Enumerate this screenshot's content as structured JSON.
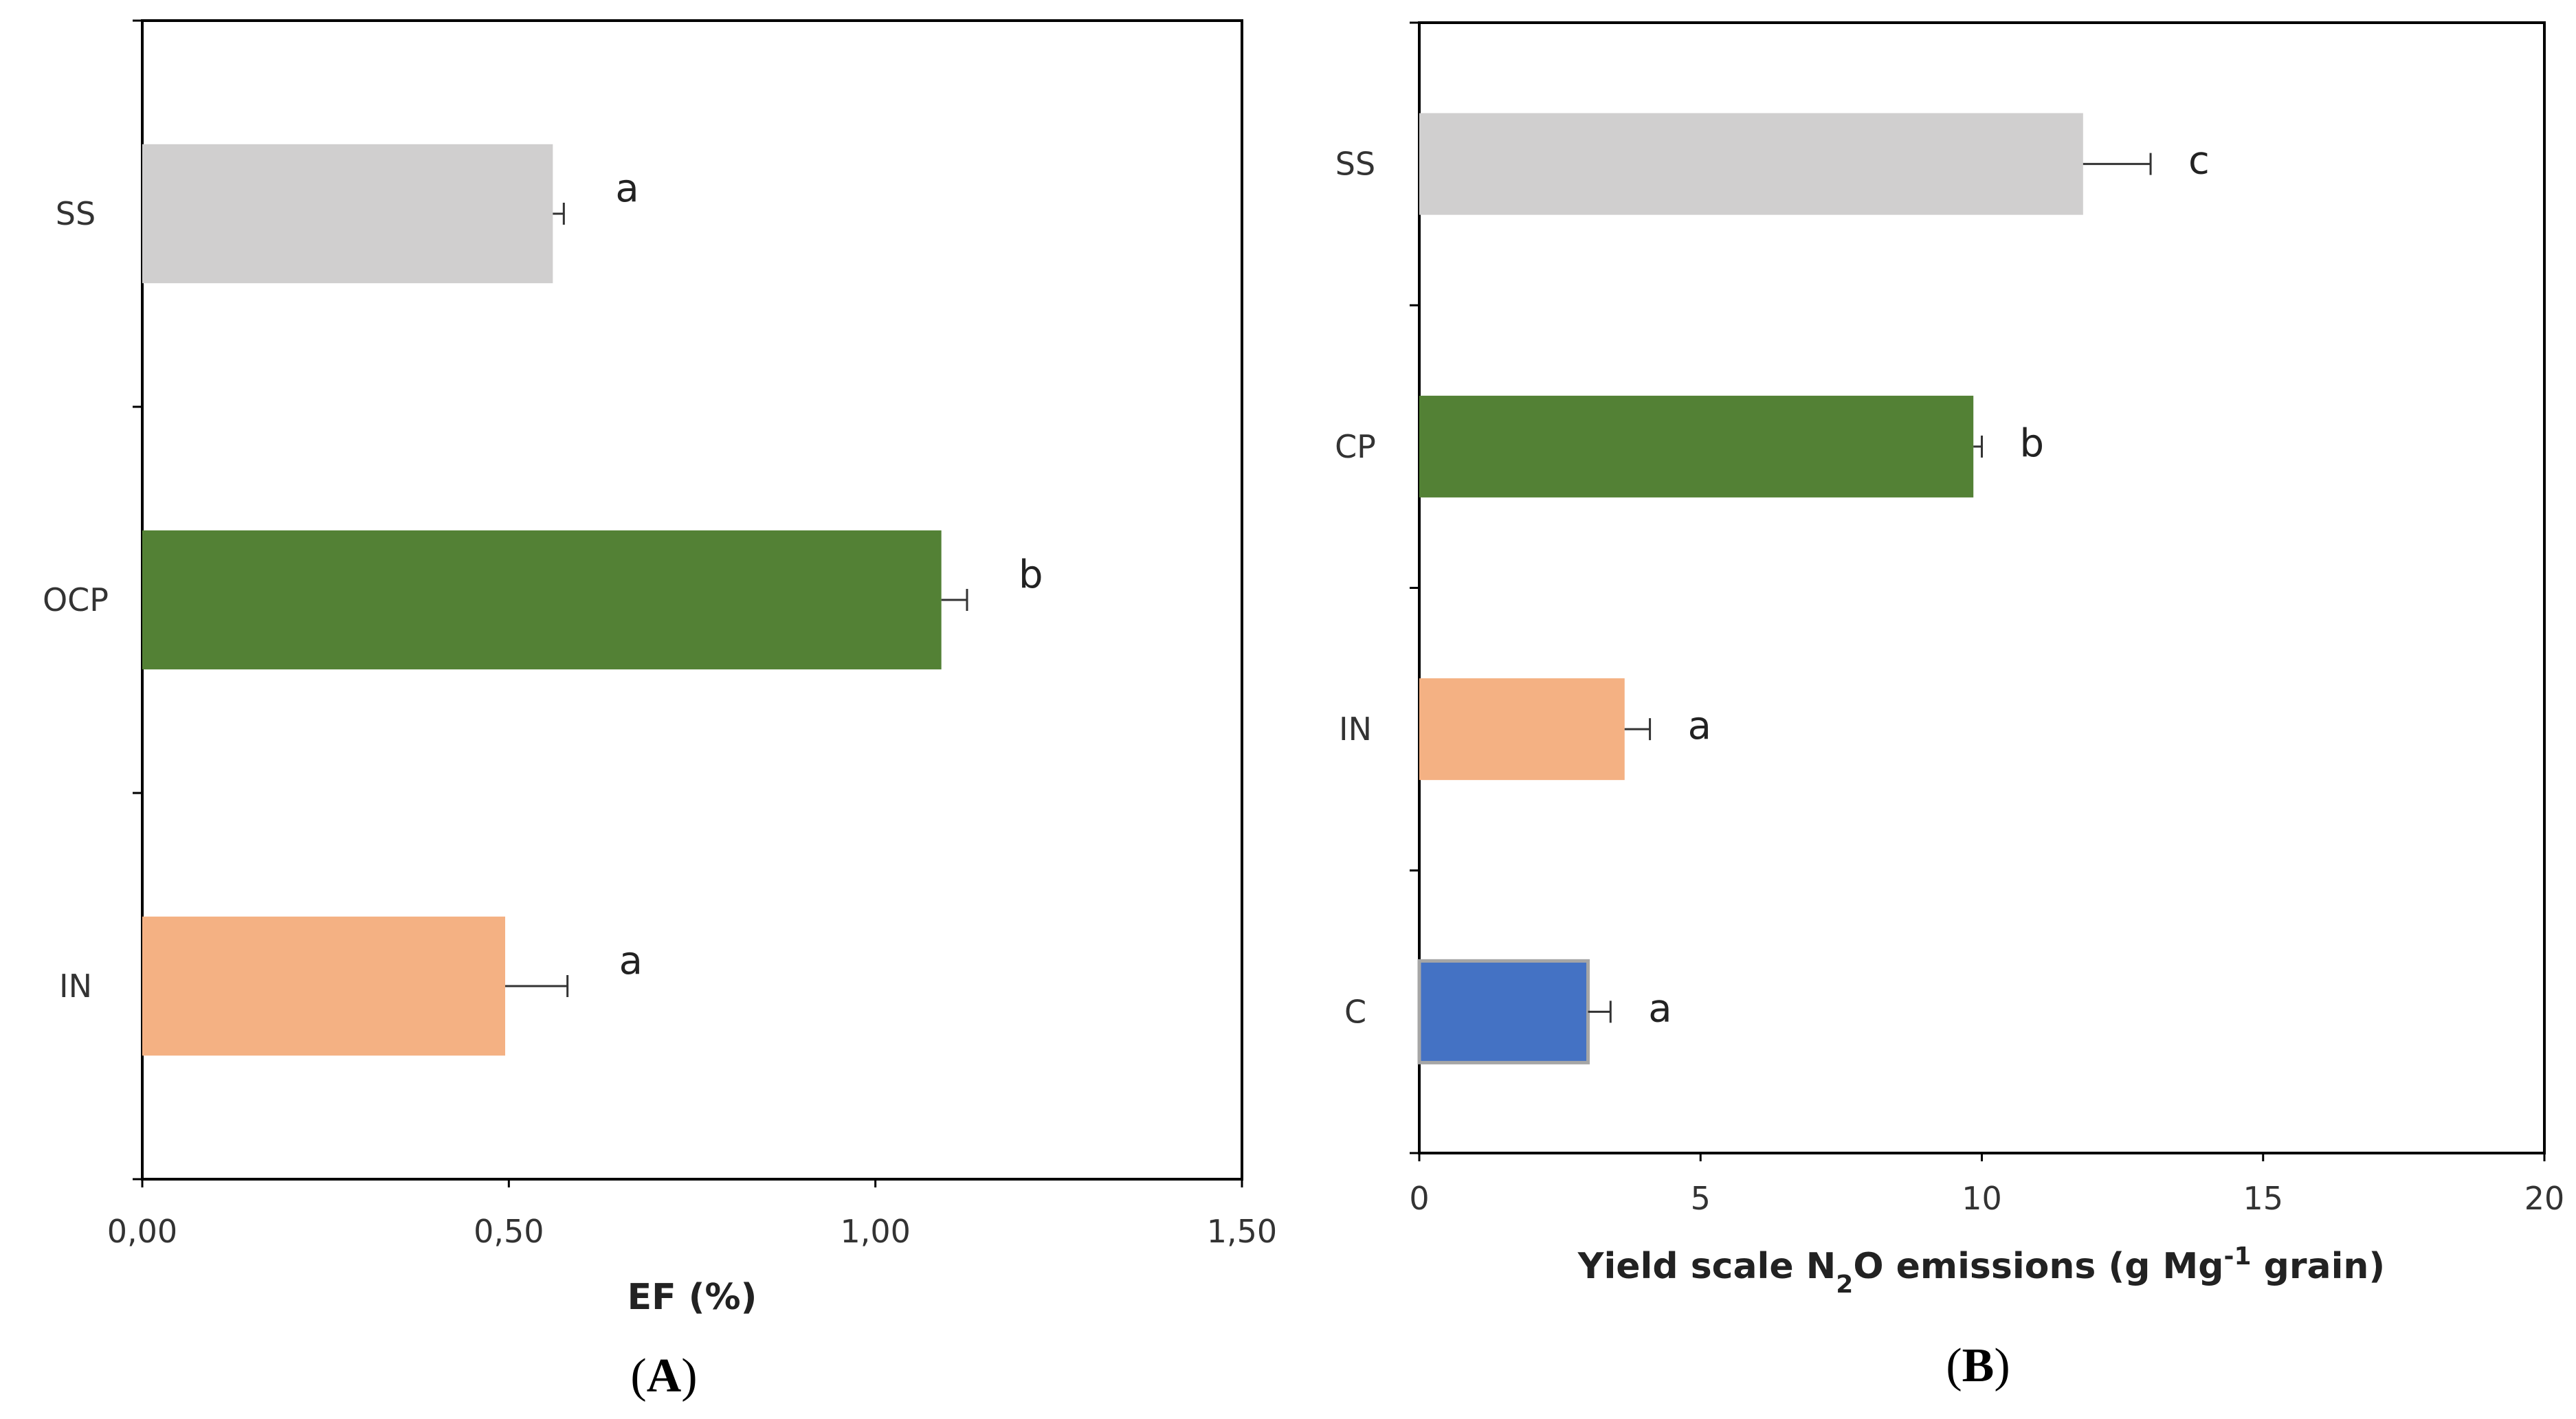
{
  "chart_data": [
    {
      "type": "bar",
      "orientation": "horizontal",
      "panel_label": "A",
      "categories": [
        "SS",
        "OCP",
        "IN"
      ],
      "values": [
        0.56,
        1.09,
        0.495
      ],
      "errors": [
        0.015,
        0.035,
        0.085
      ],
      "significance_letters": [
        "a",
        "b",
        "a"
      ],
      "colors": [
        "#d0cfcf",
        "#538135",
        "#f4b183"
      ],
      "xlabel": "EF (%)",
      "xlim": [
        0,
        1.5
      ],
      "xticks": [
        0,
        0.5,
        1.0,
        1.5
      ],
      "xtick_labels": [
        "0,00",
        "0,50",
        "1,00",
        "1,50"
      ]
    },
    {
      "type": "bar",
      "orientation": "horizontal",
      "panel_label": "B",
      "categories": [
        "SS",
        "CP",
        "IN",
        "C"
      ],
      "values": [
        11.8,
        9.85,
        3.65,
        3.0
      ],
      "errors": [
        1.2,
        0.15,
        0.45,
        0.4
      ],
      "significance_letters": [
        "c",
        "b",
        "a",
        "a"
      ],
      "colors": [
        "#d0cfcf",
        "#538135",
        "#f4b183",
        "#4472c4"
      ],
      "xlabel": "Yield scale N₂O emissions (g Mg⁻¹ grain)",
      "xlabel_parts": {
        "pre": "Yield scale N",
        "sub": "2",
        "mid": "O emissions (g Mg",
        "sup": "-1",
        "post": " grain)"
      },
      "xlim": [
        0,
        20
      ],
      "xticks": [
        0,
        5,
        10,
        15,
        20
      ],
      "xtick_labels": [
        "0",
        "5",
        "10",
        "15",
        "20"
      ]
    }
  ]
}
